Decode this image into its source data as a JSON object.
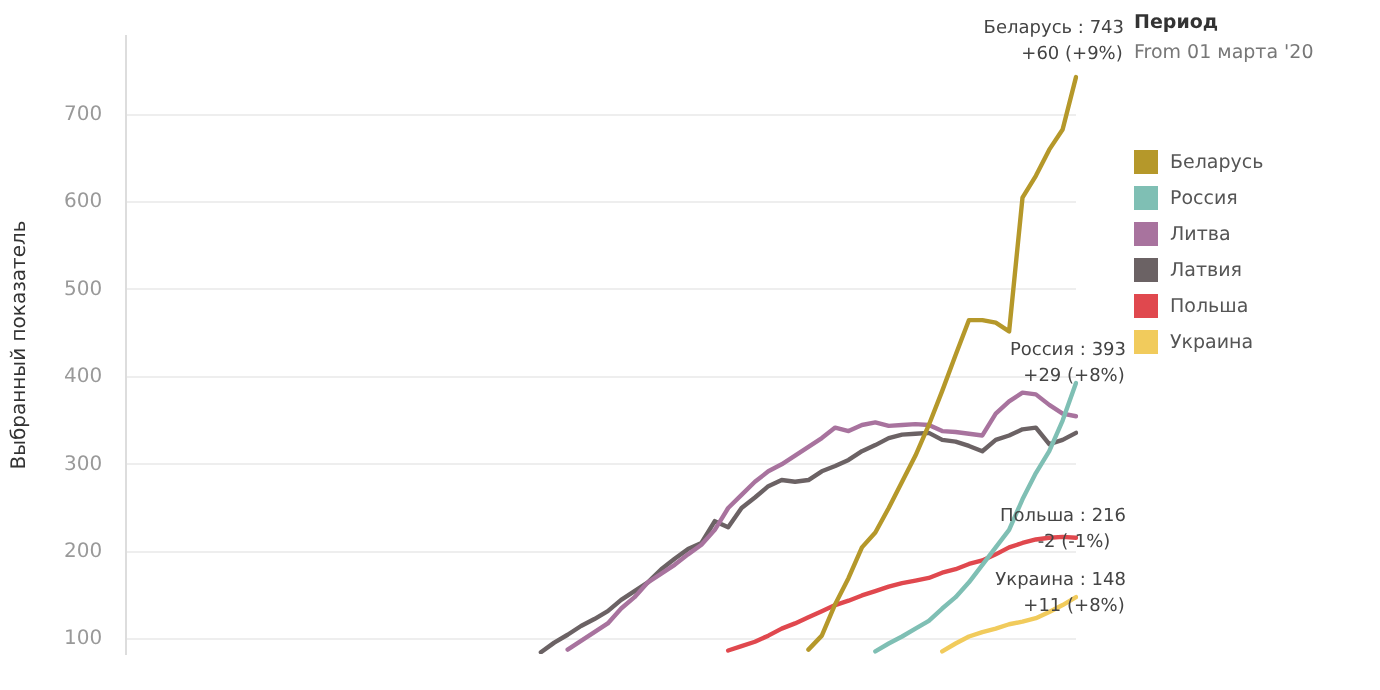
{
  "chart_data": {
    "type": "line",
    "ylabel": "Выбранный показатель",
    "legend_title": "Период",
    "legend": "right",
    "grid": "y",
    "tick_labels": "y",
    "marker": "none",
    "line_style": "solid",
    "ylim": [
      83,
      790
    ],
    "yticks": [
      100,
      200,
      300,
      400,
      500,
      600,
      700
    ],
    "categories": [
      null,
      null,
      null,
      null,
      null,
      null,
      null,
      null,
      null,
      null,
      null,
      null,
      null,
      null,
      null,
      null,
      null,
      null,
      null,
      null,
      null,
      null,
      null,
      null,
      null,
      null,
      null,
      null,
      null,
      null,
      null,
      null,
      null,
      null,
      null,
      null,
      null,
      null,
      null,
      null,
      null,
      null,
      null,
      null,
      null,
      null,
      null,
      null,
      null,
      null,
      null,
      null,
      null,
      null,
      null,
      null,
      null,
      null,
      null,
      null,
      null,
      null,
      null,
      null,
      null,
      null,
      null,
      null,
      null,
      null,
      null,
      null
    ],
    "series": [
      {
        "name": "Беларусь",
        "color": "#b5982a",
        "values": [
          null,
          null,
          null,
          null,
          null,
          null,
          null,
          null,
          null,
          null,
          null,
          null,
          null,
          null,
          null,
          null,
          null,
          null,
          null,
          null,
          null,
          null,
          null,
          null,
          null,
          null,
          null,
          null,
          null,
          null,
          null,
          null,
          null,
          null,
          null,
          null,
          null,
          null,
          null,
          null,
          null,
          null,
          null,
          null,
          null,
          null,
          null,
          null,
          null,
          null,
          null,
          88,
          104,
          140,
          170,
          205,
          222,
          250,
          280,
          310,
          345,
          384,
          425,
          465,
          465,
          462,
          452,
          605,
          630,
          660,
          683,
          743
        ]
      },
      {
        "name": "Россия",
        "color": "#7fbfb4",
        "values": [
          null,
          null,
          null,
          null,
          null,
          null,
          null,
          null,
          null,
          null,
          null,
          null,
          null,
          null,
          null,
          null,
          null,
          null,
          null,
          null,
          null,
          null,
          null,
          null,
          null,
          null,
          null,
          null,
          null,
          null,
          null,
          null,
          null,
          null,
          null,
          null,
          null,
          null,
          null,
          null,
          null,
          null,
          null,
          null,
          null,
          null,
          null,
          null,
          null,
          null,
          null,
          null,
          null,
          null,
          null,
          null,
          86,
          95,
          103,
          112,
          121,
          135,
          148,
          165,
          185,
          205,
          225,
          260,
          290,
          315,
          350,
          393
        ]
      },
      {
        "name": "Литва",
        "color": "#a8739e",
        "values": [
          null,
          null,
          null,
          null,
          null,
          null,
          null,
          null,
          null,
          null,
          null,
          null,
          null,
          null,
          null,
          null,
          null,
          null,
          null,
          null,
          null,
          null,
          null,
          null,
          null,
          null,
          null,
          null,
          null,
          null,
          null,
          null,
          null,
          88,
          98,
          108,
          118,
          135,
          148,
          165,
          175,
          185,
          197,
          208,
          225,
          250,
          265,
          280,
          292,
          300,
          310,
          320,
          330,
          342,
          338,
          345,
          348,
          344,
          345,
          346,
          345,
          338,
          337,
          335,
          333,
          358,
          372,
          382,
          380,
          368,
          358,
          355
        ]
      },
      {
        "name": "Латвия",
        "color": "#6b6264",
        "values": [
          null,
          null,
          null,
          null,
          null,
          null,
          null,
          null,
          null,
          null,
          null,
          null,
          null,
          null,
          null,
          null,
          null,
          null,
          null,
          null,
          null,
          null,
          null,
          null,
          null,
          null,
          null,
          null,
          null,
          null,
          null,
          85,
          96,
          105,
          115,
          123,
          132,
          145,
          155,
          165,
          180,
          192,
          203,
          210,
          235,
          228,
          250,
          262,
          275,
          282,
          280,
          282,
          292,
          298,
          305,
          315,
          322,
          330,
          334,
          335,
          336,
          328,
          326,
          321,
          315,
          328,
          333,
          340,
          342,
          323,
          328,
          336
        ]
      },
      {
        "name": "Польша",
        "color": "#e0484e",
        "values": [
          null,
          null,
          null,
          null,
          null,
          null,
          null,
          null,
          null,
          null,
          null,
          null,
          null,
          null,
          null,
          null,
          null,
          null,
          null,
          null,
          null,
          null,
          null,
          null,
          null,
          null,
          null,
          null,
          null,
          null,
          null,
          null,
          null,
          null,
          null,
          null,
          null,
          null,
          null,
          null,
          null,
          null,
          null,
          null,
          null,
          87,
          92,
          97,
          104,
          112,
          118,
          125,
          132,
          139,
          144,
          150,
          155,
          160,
          164,
          167,
          170,
          176,
          180,
          186,
          190,
          197,
          205,
          210,
          214,
          216,
          217,
          216
        ]
      },
      {
        "name": "Украина",
        "color": "#f1cb5c",
        "values": [
          null,
          null,
          null,
          null,
          null,
          null,
          null,
          null,
          null,
          null,
          null,
          null,
          null,
          null,
          null,
          null,
          null,
          null,
          null,
          null,
          null,
          null,
          null,
          null,
          null,
          null,
          null,
          null,
          null,
          null,
          null,
          null,
          null,
          null,
          null,
          null,
          null,
          null,
          null,
          null,
          null,
          null,
          null,
          null,
          null,
          null,
          null,
          null,
          null,
          null,
          null,
          null,
          null,
          null,
          null,
          null,
          null,
          null,
          null,
          null,
          null,
          86,
          95,
          103,
          108,
          112,
          117,
          120,
          124,
          131,
          139,
          148
        ]
      }
    ],
    "annotations": [
      "From 01 марта '20",
      "Беларусь : 743\n+60 (+9%)",
      "Россия : 393\n+29 (+8%)",
      "Польша : 216\n-2 (-1%)",
      "Украина : 148\n+11 (+8%)"
    ]
  }
}
